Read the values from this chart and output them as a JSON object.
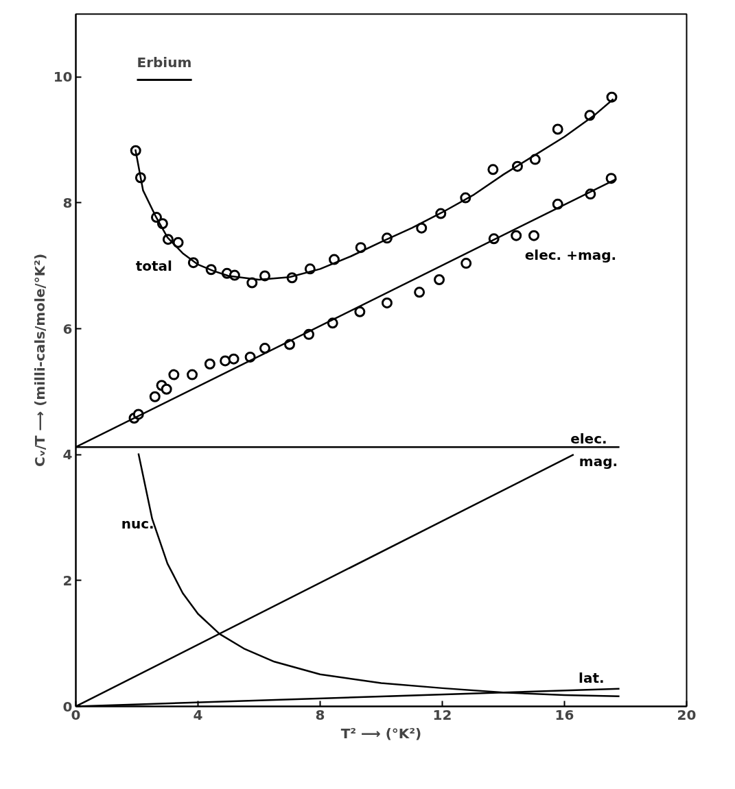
{
  "chart_data": {
    "type": "scatter",
    "title": "Erbium",
    "xlabel": "T² ⟶ (°K²)",
    "ylabel": "Cᵥ/T ⟶ (milli-cals/mole/°K²)",
    "xlim": [
      0,
      20
    ],
    "ylim": [
      0,
      11
    ],
    "xticks": [
      0,
      4,
      8,
      12,
      16,
      20
    ],
    "yticks": [
      0,
      2,
      4,
      6,
      8,
      10
    ],
    "grid": false,
    "series": [
      {
        "name": "total",
        "marker": "circle",
        "color": "#000000",
        "x": [
          1.96,
          2.12,
          2.64,
          2.84,
          3.02,
          3.35,
          3.85,
          4.43,
          4.95,
          5.2,
          5.77,
          6.19,
          7.08,
          7.67,
          8.46,
          9.33,
          10.19,
          11.32,
          11.95,
          12.76,
          13.66,
          14.46,
          15.04,
          15.78,
          16.83,
          17.55
        ],
        "values": [
          8.83,
          8.4,
          7.77,
          7.67,
          7.42,
          7.37,
          7.05,
          6.94,
          6.88,
          6.85,
          6.73,
          6.84,
          6.81,
          6.95,
          7.1,
          7.29,
          7.44,
          7.6,
          7.83,
          8.08,
          8.53,
          8.58,
          8.69,
          9.17,
          9.39,
          9.68
        ]
      },
      {
        "type": "line",
        "marker": "none",
        "color": "#000000",
        "x": [
          1.95,
          2.2,
          2.6,
          3,
          3.5,
          4,
          4.5,
          5,
          6,
          7,
          8,
          9,
          10,
          11,
          12,
          13,
          14,
          15,
          16,
          17,
          17.6
        ],
        "values": [
          8.85,
          8.2,
          7.8,
          7.45,
          7.2,
          7.02,
          6.92,
          6.84,
          6.78,
          6.82,
          6.95,
          7.15,
          7.38,
          7.6,
          7.85,
          8.12,
          8.45,
          8.75,
          9.05,
          9.4,
          9.65
        ]
      },
      {
        "marker": "circle",
        "color": "#000000",
        "x": [
          1.91,
          2.05,
          2.59,
          2.81,
          2.97,
          3.21,
          3.81,
          4.39,
          4.89,
          5.17,
          5.71,
          6.19,
          7.0,
          7.63,
          8.41,
          9.3,
          10.19,
          11.25,
          11.9,
          12.78,
          13.69,
          14.42,
          15.0,
          15.78,
          16.85,
          17.53
        ],
        "values": [
          4.58,
          4.64,
          4.92,
          5.1,
          5.04,
          5.27,
          5.27,
          5.44,
          5.49,
          5.52,
          5.55,
          5.69,
          5.75,
          5.91,
          6.09,
          6.27,
          6.41,
          6.58,
          6.78,
          7.04,
          7.43,
          7.48,
          7.48,
          7.98,
          8.14,
          8.39
        ]
      },
      {
        "name": "elec. +mag.",
        "type": "line",
        "marker": "none",
        "color": "#000000",
        "x": [
          0,
          17.7
        ],
        "values": [
          4.12,
          8.38
        ]
      },
      {
        "name": "elec.",
        "type": "line",
        "marker": "none",
        "color": "#000000",
        "x": [
          0,
          17.8
        ],
        "values": [
          4.12,
          4.12
        ]
      },
      {
        "name": "mag.",
        "type": "line",
        "marker": "none",
        "color": "#000000",
        "x": [
          0,
          16.3
        ],
        "values": [
          0,
          4.0
        ]
      },
      {
        "name": "nuc.",
        "type": "line",
        "marker": "none",
        "color": "#000000",
        "x": [
          2.05,
          2.5,
          3,
          3.5,
          4,
          4.71,
          5.5,
          6.5,
          8,
          10,
          12,
          14,
          16,
          17.8
        ],
        "values": [
          4.02,
          2.98,
          2.27,
          1.8,
          1.47,
          1.15,
          0.92,
          0.71,
          0.51,
          0.37,
          0.29,
          0.22,
          0.18,
          0.16
        ]
      },
      {
        "name": "lat.",
        "type": "line",
        "marker": "none",
        "color": "#000000",
        "x": [
          0,
          17.8
        ],
        "values": [
          0,
          0.28
        ]
      }
    ]
  }
}
